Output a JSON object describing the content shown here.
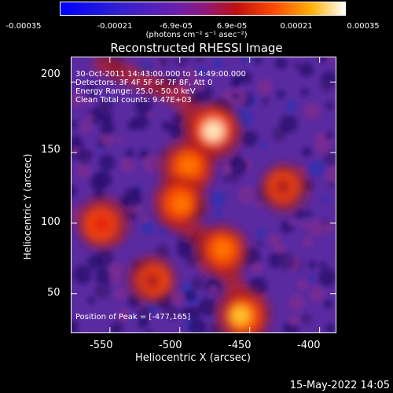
{
  "colorbar": {
    "ticks": [
      "-0.00035",
      "-0.00021",
      "-6.9e-05",
      "6.9e-05",
      "0.00021",
      "0.00035"
    ],
    "unit": "(photons cm⁻² s⁻¹ asec⁻²)"
  },
  "chart_data": {
    "type": "heatmap",
    "title": "Reconstructed RHESSI Image",
    "xlabel": "Heliocentric X (arcsec)",
    "ylabel": "Heliocentric Y (arcsec)",
    "xlim": [
      -578,
      -388
    ],
    "ylim": [
      22,
      218
    ],
    "xticks": [
      -550,
      -500,
      -450,
      -400
    ],
    "yticks": [
      50,
      100,
      150,
      200
    ],
    "colorscale_range": [
      -0.00035,
      0.00035
    ],
    "peak": {
      "x": -477,
      "y": 165
    },
    "bright_regions": [
      {
        "x": -477,
        "y": 165,
        "level": 1.0
      },
      {
        "x": -495,
        "y": 140,
        "level": 0.85
      },
      {
        "x": -500,
        "y": 115,
        "level": 0.8
      },
      {
        "x": -555,
        "y": 100,
        "level": 0.75
      },
      {
        "x": -470,
        "y": 80,
        "level": 0.8
      },
      {
        "x": -455,
        "y": 35,
        "level": 0.9
      },
      {
        "x": -425,
        "y": 125,
        "level": 0.6
      },
      {
        "x": -520,
        "y": 60,
        "level": 0.6
      }
    ],
    "annotations": [
      "30-Oct-2011 14:43:00.000 to 14:49:00.000",
      "Detectors: 3F 4F 5F 6F 7F 8F, Att 0",
      "Energy Range: 25.0 - 50.0 keV",
      "Clean     Total counts: 9.47E+03"
    ],
    "peak_label": "Position of Peak = [-477,165]"
  },
  "footer": {
    "timestamp": "15-May-2022 14:05"
  }
}
